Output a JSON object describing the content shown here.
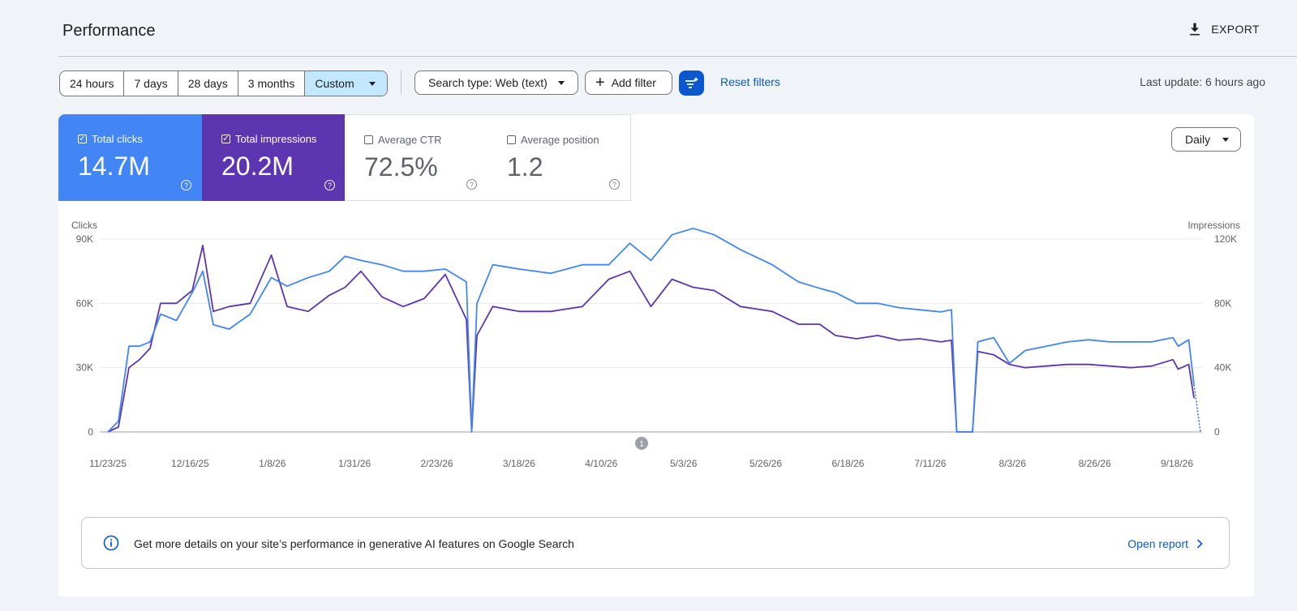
{
  "header": {
    "title": "Performance",
    "export_label": "EXPORT"
  },
  "date_range": {
    "options": [
      "24 hours",
      "7 days",
      "28 days",
      "3 months"
    ],
    "selected": "Custom"
  },
  "filters": {
    "search_type": "Search type: Web (text)",
    "add_filter": "Add filter",
    "reset": "Reset filters"
  },
  "last_update": "Last update: 6 hours ago",
  "metrics": {
    "clicks": {
      "label": "Total clicks",
      "value": "14.7M",
      "checked": true,
      "color": "#4285f4"
    },
    "impressions": {
      "label": "Total impressions",
      "value": "20.2M",
      "checked": true,
      "color": "#5e35b1"
    },
    "ctr": {
      "label": "Average CTR",
      "value": "72.5%",
      "checked": false
    },
    "position": {
      "label": "Average position",
      "value": "1.2",
      "checked": false
    }
  },
  "granularity": "Daily",
  "chart_data": {
    "type": "line",
    "left_axis": {
      "label": "Clicks",
      "ticks": [
        "0",
        "30K",
        "60K",
        "90K"
      ],
      "ylim": [
        0,
        90000
      ]
    },
    "right_axis": {
      "label": "Impressions",
      "ticks": [
        "0",
        "40K",
        "80K",
        "120K"
      ],
      "ylim": [
        0,
        120000
      ]
    },
    "x_ticks": [
      "11/23/25",
      "12/16/25",
      "1/8/26",
      "1/31/26",
      "2/23/26",
      "3/18/26",
      "4/10/26",
      "5/3/26",
      "5/26/26",
      "6/18/26",
      "7/11/26",
      "8/3/26",
      "8/26/26",
      "9/18/26"
    ],
    "annotation": "1",
    "series": [
      {
        "name": "Total clicks",
        "axis": "left",
        "color": "#4285f4"
      },
      {
        "name": "Total impressions",
        "axis": "right",
        "color": "#5e35b1"
      }
    ],
    "segments": [
      [
        0,
        0,
        0
      ],
      [
        2,
        5,
        3000
      ],
      [
        4,
        40,
        40000
      ],
      [
        6,
        40,
        45000
      ],
      [
        8,
        42,
        52000
      ],
      [
        10,
        55,
        80000
      ],
      [
        13,
        52,
        80000
      ],
      [
        16,
        65,
        88000
      ],
      [
        18,
        75,
        116000
      ],
      [
        20,
        50,
        75000
      ],
      [
        23,
        48,
        78000
      ],
      [
        27,
        55,
        80000
      ],
      [
        31,
        72,
        110000
      ],
      [
        34,
        68,
        78000
      ],
      [
        38,
        72,
        75000
      ],
      [
        42,
        75,
        85000
      ],
      [
        45,
        82,
        90000
      ],
      [
        48,
        80,
        100000
      ],
      [
        52,
        78,
        84000
      ],
      [
        56,
        75,
        78000
      ],
      [
        60,
        75,
        83000
      ],
      [
        64,
        76,
        98000
      ],
      [
        68,
        70,
        70000
      ],
      [
        69,
        0,
        0
      ],
      [
        70,
        60,
        60000
      ],
      [
        73,
        78,
        78000
      ],
      [
        78,
        76,
        75000
      ],
      [
        84,
        74,
        75000
      ],
      [
        90,
        78,
        78000
      ],
      [
        95,
        78,
        95000
      ],
      [
        99,
        88,
        100000
      ],
      [
        103,
        80,
        78000
      ],
      [
        107,
        92,
        95000
      ],
      [
        111,
        95,
        90000
      ],
      [
        115,
        92,
        88000
      ],
      [
        120,
        85,
        78000
      ],
      [
        126,
        78,
        75000
      ],
      [
        131,
        70,
        67000
      ],
      [
        135,
        67,
        67000
      ],
      [
        138,
        65,
        60000
      ],
      [
        142,
        60,
        58000
      ],
      [
        146,
        60,
        60000
      ],
      [
        150,
        58,
        57000
      ],
      [
        154,
        57,
        58000
      ],
      [
        158,
        56,
        56000
      ],
      [
        160,
        57,
        57000
      ],
      [
        161,
        0,
        0
      ],
      [
        164,
        0,
        0
      ],
      [
        165,
        42,
        50000
      ],
      [
        168,
        44,
        48000
      ],
      [
        171,
        32,
        42000
      ],
      [
        174,
        38,
        40000
      ],
      [
        178,
        40,
        41000
      ],
      [
        182,
        42,
        42000
      ],
      [
        186,
        43,
        42000
      ],
      [
        190,
        42,
        41000
      ],
      [
        194,
        42,
        40000
      ],
      [
        198,
        42,
        41000
      ],
      [
        202,
        44,
        45000
      ],
      [
        203,
        40,
        39000
      ],
      [
        205,
        43,
        42000
      ],
      [
        206,
        22,
        21000
      ]
    ]
  },
  "banner": {
    "message": "Get more details on your site’s performance in generative AI features on Google Search",
    "link": "Open report"
  }
}
